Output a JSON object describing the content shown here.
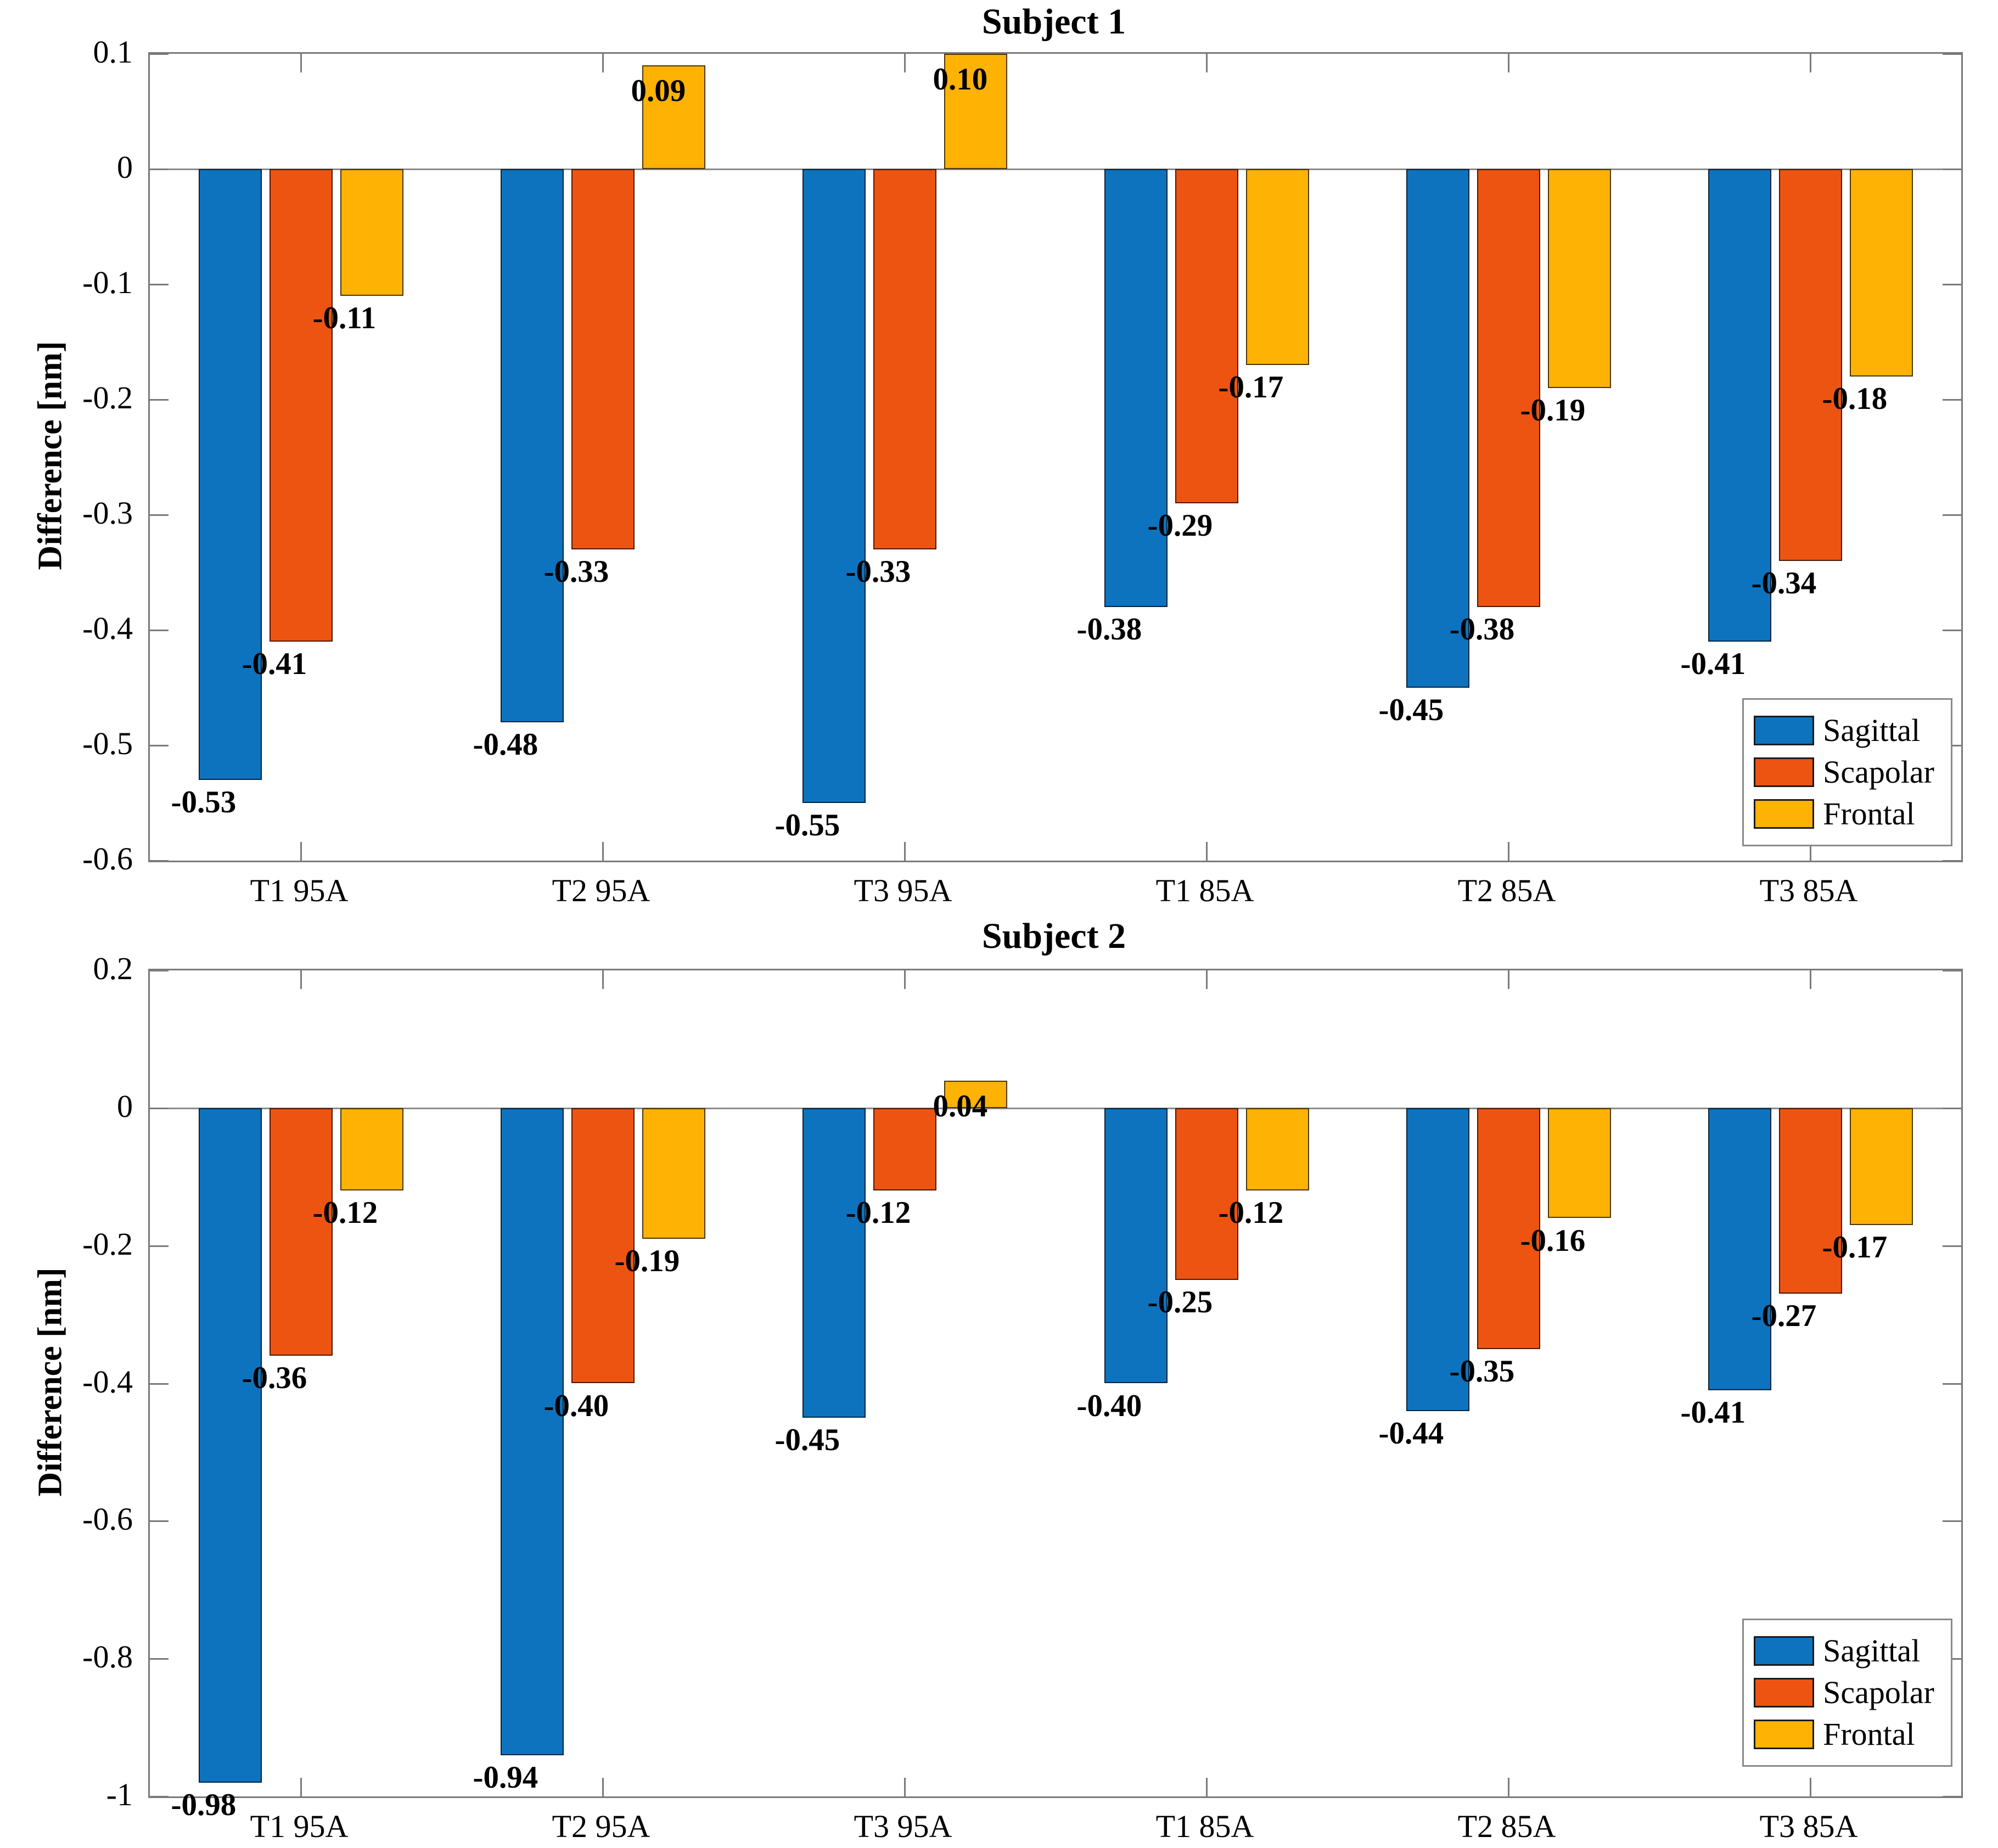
{
  "colors": {
    "sagittal": "#0E73BE",
    "scapolar": "#EE5411",
    "frontal": "#FEB204",
    "axis": "#7a7a7a",
    "text": "#000000",
    "background": "#ffffff"
  },
  "chart_data": [
    {
      "type": "bar",
      "title": "Subject 1",
      "xlabel": "",
      "ylabel": "Difference [nm]",
      "categories": [
        "T1 95A",
        "T2 95A",
        "T3 95A",
        "T1 85A",
        "T2 85A",
        "T3 85A"
      ],
      "series": [
        {
          "name": "Sagittal",
          "color": "#0E73BE",
          "values": [
            -0.53,
            -0.48,
            -0.55,
            -0.38,
            -0.45,
            -0.41
          ],
          "labels": [
            "-0.53",
            "-0.48",
            "-0.55",
            "-0.38",
            "-0.45",
            "-0.41"
          ]
        },
        {
          "name": "Scapolar",
          "color": "#EE5411",
          "values": [
            -0.41,
            -0.33,
            -0.33,
            -0.29,
            -0.38,
            -0.34
          ],
          "labels": [
            "-0.41",
            "-0.33",
            "-0.33",
            "-0.29",
            "-0.38",
            "-0.34"
          ]
        },
        {
          "name": "Frontal",
          "color": "#FEB204",
          "values": [
            -0.11,
            0.09,
            0.1,
            -0.17,
            -0.19,
            -0.18
          ],
          "labels": [
            "-0.11",
            "0.09",
            "0.10",
            "-0.17",
            "-0.19",
            "-0.18"
          ]
        }
      ],
      "ylim": [
        -0.6,
        0.1
      ],
      "yticks": [
        0.1,
        0,
        -0.1,
        -0.2,
        -0.3,
        -0.4,
        -0.5,
        -0.6
      ],
      "ytick_labels": [
        "0.1",
        "0",
        "-0.1",
        "-0.2",
        "-0.3",
        "-0.4",
        "-0.5",
        "-0.6"
      ],
      "grid": false,
      "legend_position": "bottom-right"
    },
    {
      "type": "bar",
      "title": "Subject 2",
      "xlabel": "",
      "ylabel": "Difference [nm]",
      "categories": [
        "T1 95A",
        "T2 95A",
        "T3 95A",
        "T1 85A",
        "T2 85A",
        "T3 85A"
      ],
      "series": [
        {
          "name": "Sagittal",
          "color": "#0E73BE",
          "values": [
            -0.98,
            -0.94,
            -0.45,
            -0.4,
            -0.44,
            -0.41
          ],
          "labels": [
            "-0.98",
            "-0.94",
            "-0.45",
            "-0.40",
            "-0.44",
            "-0.41"
          ]
        },
        {
          "name": "Scapolar",
          "color": "#EE5411",
          "values": [
            -0.36,
            -0.4,
            -0.12,
            -0.25,
            -0.35,
            -0.27
          ],
          "labels": [
            "-0.36",
            "-0.40",
            "-0.12",
            "-0.25",
            "-0.35",
            "-0.27"
          ]
        },
        {
          "name": "Frontal",
          "color": "#FEB204",
          "values": [
            -0.12,
            -0.19,
            0.04,
            -0.12,
            -0.16,
            -0.17
          ],
          "labels": [
            "-0.12",
            "-0.19",
            "0.04",
            "-0.12",
            "-0.16",
            "-0.17"
          ]
        }
      ],
      "ylim": [
        -1.0,
        0.2
      ],
      "yticks": [
        0.2,
        0,
        -0.2,
        -0.4,
        -0.6,
        -0.8,
        -1
      ],
      "ytick_labels": [
        "0.2",
        "0",
        "-0.2",
        "-0.4",
        "-0.6",
        "-0.8",
        "-1"
      ],
      "grid": false,
      "legend_position": "bottom-right"
    }
  ]
}
